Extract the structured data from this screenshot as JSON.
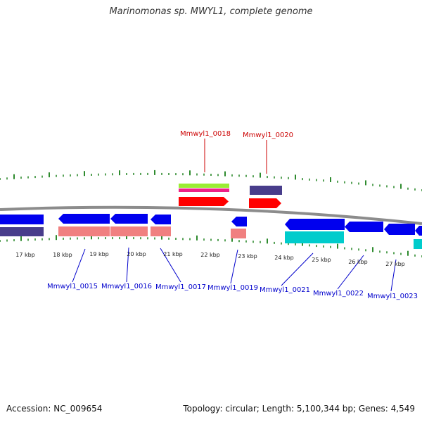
{
  "title": "Marinomonas sp. MWYL1, complete genome",
  "footer": {
    "accession": "Accession: NC_009654",
    "summary": "Topology: circular; Length: 5,100,344 bp; Genes: 4,549"
  },
  "colors": {
    "backbone": "#8c8c8c",
    "tick": "#2e8b2e",
    "label_top": "#cc0000",
    "label_bottom": "#0000cc",
    "cds_blue": "#0000ee",
    "cds_red": "#ff0000",
    "rna_pink": "#f08080",
    "rna_cyan": "#00cccc",
    "dark_slate": "#483d8b",
    "yellow_green": "#99ee33",
    "magenta": "#ee2288"
  },
  "kbp_labels": [
    "17 kbp",
    "18 kbp",
    "19 kbp",
    "20 kbp",
    "21 kbp",
    "22 kbp",
    "23 kbp",
    "24 kbp",
    "25 kbp",
    "26 kbp",
    "27 kbp"
  ],
  "top_genes": [
    {
      "id": "g18",
      "label": "Mmwyl1_0018"
    },
    {
      "id": "g20",
      "label": "Mmwyl1_0020"
    }
  ],
  "bottom_genes": [
    {
      "id": "g15",
      "label": "Mmwyl1_0015"
    },
    {
      "id": "g16",
      "label": "Mmwyl1_0016"
    },
    {
      "id": "g17",
      "label": "Mmwyl1_0017"
    },
    {
      "id": "g19",
      "label": "Mmwyl1_0019"
    },
    {
      "id": "g21",
      "label": "Mmwyl1_0021"
    },
    {
      "id": "g22",
      "label": "Mmwyl1_0022"
    },
    {
      "id": "g23",
      "label": "Mmwyl1_0023"
    }
  ]
}
